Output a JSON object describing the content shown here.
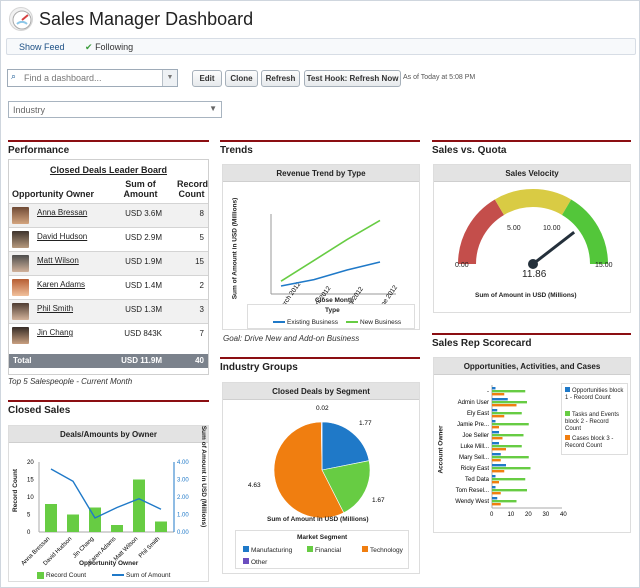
{
  "header": {
    "title": "Sales Manager Dashboard",
    "show_feed": "Show Feed",
    "following": "Following"
  },
  "toolbar": {
    "search_placeholder": "Find a dashboard...",
    "edit": "Edit",
    "clone": "Clone",
    "refresh": "Refresh",
    "test_hook": "Test Hook: Refresh Now",
    "as_of": "As of Today at 5:08 PM",
    "industry_filter": "Industry"
  },
  "performance": {
    "title": "Performance",
    "leader_board": "Closed Deals Leader Board",
    "col_owner": "Opportunity Owner",
    "col_amount": "Sum of Amount",
    "col_count": "Record Count",
    "rows": [
      {
        "owner": "Anna Bressan",
        "amount": "USD 3.6M",
        "count": "8"
      },
      {
        "owner": "David Hudson",
        "amount": "USD 2.9M",
        "count": "5"
      },
      {
        "owner": "Matt Wilson",
        "amount": "USD 1.9M",
        "count": "15"
      },
      {
        "owner": "Karen Adams",
        "amount": "USD 1.4M",
        "count": "2"
      },
      {
        "owner": "Phil Smith",
        "amount": "USD 1.3M",
        "count": "3"
      },
      {
        "owner": "Jin Chang",
        "amount": "USD 843K",
        "count": "7"
      }
    ],
    "total_label": "Total",
    "total_amount": "USD 11.9M",
    "total_count": "40",
    "caption": "Top 5 Salespeople - Current Month"
  },
  "trends": {
    "title": "Trends",
    "chart_title": "Revenue Trend by Type",
    "ylabel": "Sum of Amount in USD (Millions)",
    "xlabel": "Close Month",
    "legend_title": "Type",
    "series_1": "Existing Business",
    "series_2": "New Business",
    "goal": "Goal: Drive New and Add-on Business"
  },
  "quota": {
    "title": "Sales vs. Quota",
    "chart_title": "Sales Velocity",
    "value": "11.86",
    "xlabel": "Sum of Amount in USD (Millions)",
    "ticks": {
      "min": "0.00",
      "a": "5.00",
      "b": "10.00",
      "max": "15.00"
    }
  },
  "closed_sales": {
    "title": "Closed Sales",
    "chart_title": "Deals/Amounts by Owner",
    "ylabel_left": "Record Count",
    "ylabel_right": "Sum of Amount in USD (Millions)",
    "xlabel": "Opportunity Owner",
    "legend_1": "Record Count",
    "legend_2": "Sum of Amount"
  },
  "industry_groups": {
    "title": "Industry Groups",
    "chart_title": "Closed Deals by Segment",
    "xlabel": "Sum of Amount in USD (Millions)",
    "legend_title": "Market Segment",
    "legend_items": [
      "Manufacturing",
      "Financial",
      "Technology",
      "Other"
    ]
  },
  "scorecard": {
    "title": "Sales Rep Scorecard",
    "chart_title": "Opportunities, Activities, and Cases",
    "ylabel": "Account Owner",
    "legend_1": "Opportunities block 1 - Record Count",
    "legend_2": "Tasks and Events block 2 - Record Count",
    "legend_3": "Cases block 3 - Record Count"
  },
  "chart_data": [
    {
      "type": "line",
      "title": "Revenue Trend by Type",
      "x": [
        "March 2012",
        "April 2012",
        "May 2012",
        "June 2012"
      ],
      "series": [
        {
          "name": "Existing Business",
          "values": [
            0.5,
            0.9,
            1.5,
            2.0
          ]
        },
        {
          "name": "New Business",
          "values": [
            0.8,
            2.1,
            3.4,
            4.6
          ]
        }
      ],
      "xlabel": "Close Month",
      "ylabel": "Sum of Amount in USD (Millions)",
      "ylim": [
        0,
        5
      ]
    },
    {
      "type": "gauge",
      "title": "Sales Velocity",
      "value": 11.86,
      "ranges": [
        0,
        5,
        10,
        15
      ],
      "xlabel": "Sum of Amount in USD (Millions)"
    },
    {
      "type": "bar",
      "title": "Deals/Amounts by Owner",
      "categories": [
        "Anna Bressan",
        "David Hudson",
        "Jin Chang",
        "Karen Adams",
        "Matt Wilson",
        "Phil Smith"
      ],
      "series": [
        {
          "name": "Record Count",
          "values": [
            8,
            5,
            7,
            2,
            15,
            3
          ]
        },
        {
          "name": "Sum of Amount",
          "values": [
            3.6,
            2.9,
            0.8,
            1.4,
            1.9,
            1.3
          ]
        }
      ],
      "ylim": [
        0,
        20
      ]
    },
    {
      "type": "pie",
      "title": "Closed Deals by Segment",
      "labels": [
        "Manufacturing",
        "Financial",
        "Technology",
        "Other"
      ],
      "values": [
        1.77,
        1.67,
        4.63,
        0.02
      ]
    },
    {
      "type": "bar",
      "title": "Opportunities, Activities, and Cases",
      "categories": [
        "-",
        "Admin User",
        "Ely East",
        "Jamie Pre...",
        "Joe Seller",
        "Luke Mill...",
        "Mary Sell...",
        "Ricky East",
        "Ted Data",
        "Tom Resel...",
        "Wendy West"
      ],
      "series": [
        {
          "name": "Opportunities block 1 - Record Count",
          "values": [
            2,
            9,
            3,
            2,
            4,
            4,
            5,
            8,
            2,
            2,
            3
          ]
        },
        {
          "name": "Tasks and Events block 2 - Record Count",
          "values": [
            19,
            20,
            17,
            21,
            18,
            17,
            21,
            22,
            19,
            20,
            14
          ]
        },
        {
          "name": "Cases block 3 - Record Count",
          "values": [
            7,
            14,
            7,
            4,
            6,
            8,
            5,
            7,
            4,
            5,
            5
          ]
        }
      ],
      "xlim": [
        0,
        40
      ]
    }
  ]
}
